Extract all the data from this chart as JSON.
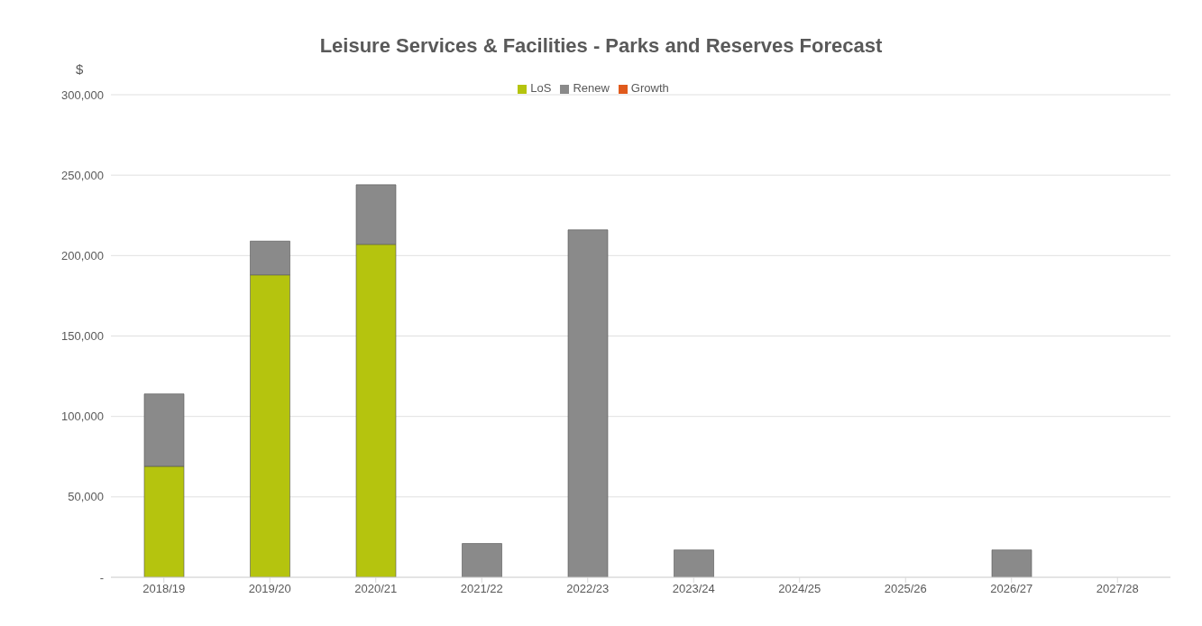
{
  "chart_data": {
    "type": "bar",
    "title": "Leisure Services & Facilities - Parks and Reserves Forecast",
    "ylabel": "$",
    "stacked": true,
    "categories": [
      "2018/19",
      "2019/20",
      "2020/21",
      "2021/22",
      "2022/23",
      "2023/24",
      "2024/25",
      "2025/26",
      "2026/27",
      "2027/28"
    ],
    "series": [
      {
        "name": "LoS",
        "color": "#b5c40e",
        "values": [
          69000,
          188000,
          207000,
          null,
          null,
          null,
          null,
          null,
          null,
          null
        ]
      },
      {
        "name": "Renew",
        "color": "#8a8a8a",
        "values": [
          45000,
          21000,
          37000,
          21000,
          216000,
          17000,
          null,
          null,
          17000,
          null
        ]
      },
      {
        "name": "Growth",
        "color": "#e05a1c",
        "values": [
          null,
          null,
          null,
          null,
          null,
          null,
          null,
          null,
          null,
          null
        ]
      }
    ],
    "ylim": [
      0,
      300000
    ],
    "yticks": [
      {
        "value": 0,
        "label": "-"
      },
      {
        "value": 50000,
        "label": "50,000"
      },
      {
        "value": 100000,
        "label": "100,000"
      },
      {
        "value": 150000,
        "label": "150,000"
      },
      {
        "value": 200000,
        "label": "200,000"
      },
      {
        "value": 250000,
        "label": "250,000"
      },
      {
        "value": 300000,
        "label": "300,000"
      }
    ],
    "grid": "y",
    "legend": "top"
  }
}
